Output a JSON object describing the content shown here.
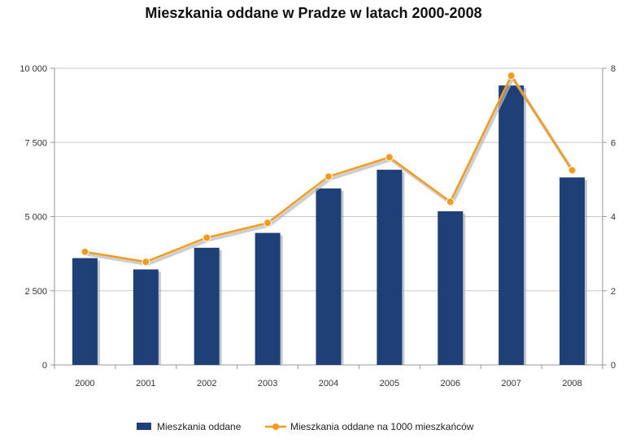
{
  "chart_data": {
    "type": "bar",
    "title": "Mieszkania oddane w Pradze w  latach 2000-2008",
    "categories": [
      "2000",
      "2001",
      "2002",
      "2003",
      "2004",
      "2005",
      "2006",
      "2007",
      "2008"
    ],
    "series": [
      {
        "name": "Mieszkania oddane",
        "type": "bar",
        "axis": "left",
        "color": "#1f3f77",
        "values": [
          3600,
          3220,
          3950,
          4450,
          5950,
          6580,
          5180,
          9420,
          6320
        ]
      },
      {
        "name": "Mieszkania oddane na 1000 mieszkańców",
        "type": "line",
        "axis": "right",
        "color": "#f39b1c",
        "values": [
          3.05,
          2.78,
          3.43,
          3.83,
          5.08,
          5.6,
          4.4,
          7.8,
          5.25
        ]
      }
    ],
    "y_left": {
      "lim": [
        0,
        10000
      ],
      "ticks": [
        0,
        2500,
        5000,
        7500,
        10000
      ],
      "tick_labels": [
        "0",
        "2 500",
        "5 000",
        "7 500",
        "10 000"
      ]
    },
    "y_right": {
      "lim": [
        0,
        8
      ],
      "ticks": [
        0,
        2,
        4,
        6,
        8
      ],
      "tick_labels": [
        "0",
        "2",
        "4",
        "6",
        "8"
      ]
    },
    "xlabel": "",
    "ylabel": "",
    "grid": true,
    "legend_position": "bottom"
  }
}
